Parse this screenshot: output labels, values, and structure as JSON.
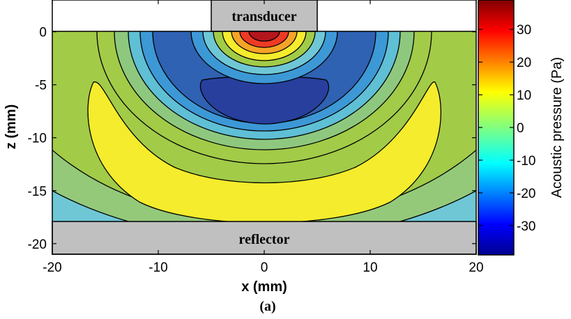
{
  "chart_data": {
    "type": "heatmap",
    "xlabel": "x (mm)",
    "ylabel": "z (mm)",
    "xlim": [
      -20,
      20
    ],
    "ylim": [
      -21,
      3
    ],
    "x_ticks": [
      -20,
      -10,
      0,
      10,
      20
    ],
    "y_ticks": [
      0,
      -5,
      -10,
      -15,
      -20
    ],
    "colorbar": {
      "label": "Acoustic pressure (Pa)",
      "range": [
        -39,
        39
      ],
      "ticks": [
        30,
        20,
        10,
        0,
        -10,
        -20,
        -30
      ],
      "colormap": "jet"
    },
    "contour_levels": [
      -35,
      -28,
      -20,
      -13,
      -5,
      3,
      11,
      18,
      26,
      34
    ],
    "annotations": {
      "transducer": {
        "label": "transducer",
        "x_range": [
          -5,
          5
        ],
        "z_range": [
          0,
          3
        ]
      },
      "reflector": {
        "label": "reflector",
        "x_range": [
          -20,
          20
        ],
        "z_range": [
          -21,
          -18
        ]
      }
    },
    "regions": [
      {
        "band": "outer",
        "pressure_pa": -10
      },
      {
        "band": "surround",
        "pressure_pa": 0
      },
      {
        "band": "yellow-arc",
        "pressure_pa": 12
      },
      {
        "band": "center-blue",
        "pressure_pa": -33
      },
      {
        "band": "near-transducer-peak",
        "pressure_pa": 36
      }
    ],
    "caption": "(a)"
  }
}
